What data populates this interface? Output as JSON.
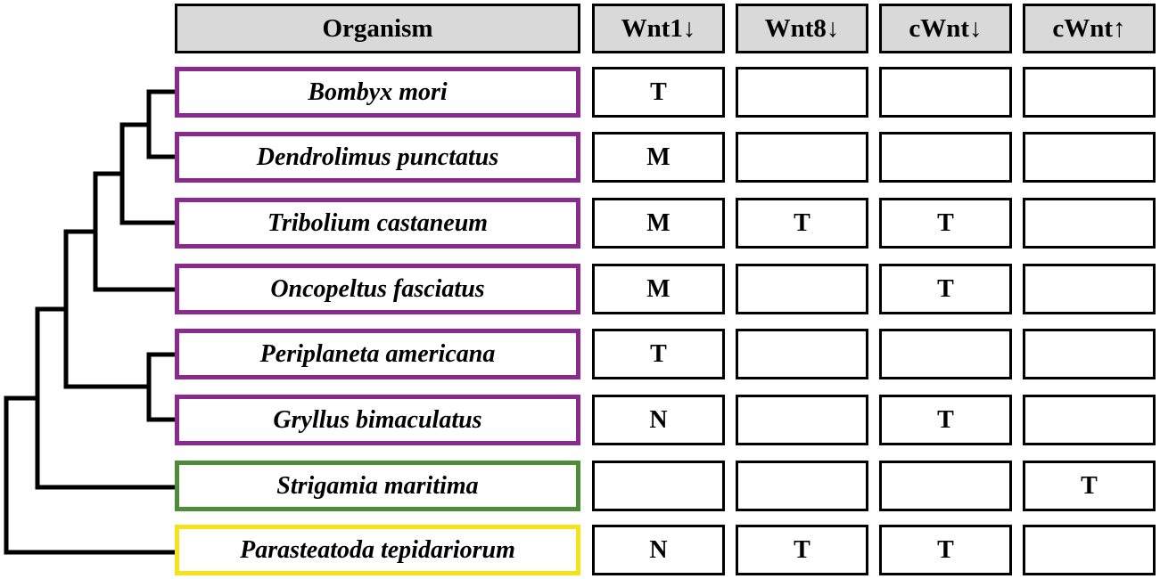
{
  "header": {
    "organism": "Organism",
    "columns": [
      "Wnt1↓",
      "Wnt8↓",
      "cWnt↓",
      "cWnt↑"
    ]
  },
  "rows": [
    {
      "organism": "Bombyx mori",
      "group": "purple",
      "cells": [
        "T",
        "",
        "",
        ""
      ]
    },
    {
      "organism": "Dendrolimus punctatus",
      "group": "purple",
      "cells": [
        "M",
        "",
        "",
        ""
      ]
    },
    {
      "organism": "Tribolium castaneum",
      "group": "purple",
      "cells": [
        "M",
        "T",
        "T",
        ""
      ]
    },
    {
      "organism": "Oncopeltus fasciatus",
      "group": "purple",
      "cells": [
        "M",
        "",
        "T",
        ""
      ]
    },
    {
      "organism": "Periplaneta americana",
      "group": "purple",
      "cells": [
        "T",
        "",
        "",
        ""
      ]
    },
    {
      "organism": "Gryllus bimaculatus",
      "group": "purple",
      "cells": [
        "N",
        "",
        "T",
        ""
      ]
    },
    {
      "organism": "Strigamia maritima",
      "group": "green",
      "cells": [
        "",
        "",
        "",
        "T"
      ]
    },
    {
      "organism": "Parasteatoda tepidariorum",
      "group": "yellow",
      "cells": [
        "N",
        "T",
        "T",
        ""
      ]
    }
  ],
  "colors": {
    "purple": "#8b2a8e",
    "green": "#4e8c3a",
    "yellow": "#f5e31a",
    "header_fill": "#d9d9d9"
  }
}
